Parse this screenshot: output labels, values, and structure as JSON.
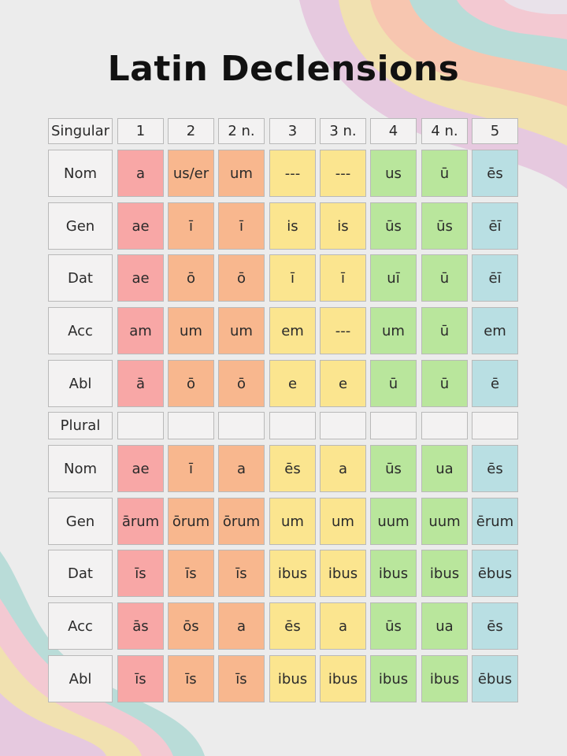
{
  "title": "Latin Declensions",
  "colors": {
    "declension_1": "#f8a7a6",
    "declension_2": "#f8b78e",
    "declension_3": "#fbe58f",
    "declension_4": "#b9e69c",
    "declension_5": "#b9dfe3",
    "label_cell": "#f3f2f2"
  },
  "columns": [
    "1",
    "2",
    "2 n.",
    "3",
    "3 n.",
    "4",
    "4 n.",
    "5"
  ],
  "singular": {
    "label": "Singular",
    "rows": [
      {
        "case": "Nom",
        "endings": [
          "a",
          "us/er",
          "um",
          "---",
          "---",
          "us",
          "ū",
          "ēs"
        ]
      },
      {
        "case": "Gen",
        "endings": [
          "ae",
          "ī",
          "ī",
          "is",
          "is",
          "ūs",
          "ūs",
          "ēī"
        ]
      },
      {
        "case": "Dat",
        "endings": [
          "ae",
          "ō",
          "ō",
          "ī",
          "ī",
          "uī",
          "ū",
          "ēī"
        ]
      },
      {
        "case": "Acc",
        "endings": [
          "am",
          "um",
          "um",
          "em",
          "---",
          "um",
          "ū",
          "em"
        ]
      },
      {
        "case": "Abl",
        "endings": [
          "ā",
          "ō",
          "ō",
          "e",
          "e",
          "ū",
          "ū",
          "ē"
        ]
      }
    ]
  },
  "plural": {
    "label": "Plural",
    "rows": [
      {
        "case": "Nom",
        "endings": [
          "ae",
          "ī",
          "a",
          "ēs",
          "a",
          "ūs",
          "ua",
          "ēs"
        ]
      },
      {
        "case": "Gen",
        "endings": [
          "ārum",
          "ōrum",
          "ōrum",
          "um",
          "um",
          "uum",
          "uum",
          "ērum"
        ]
      },
      {
        "case": "Dat",
        "endings": [
          "īs",
          "īs",
          "īs",
          "ibus",
          "ibus",
          "ibus",
          "ibus",
          "ēbus"
        ]
      },
      {
        "case": "Acc",
        "endings": [
          "ās",
          "ōs",
          "a",
          "ēs",
          "a",
          "ūs",
          "ua",
          "ēs"
        ]
      },
      {
        "case": "Abl",
        "endings": [
          "īs",
          "īs",
          "īs",
          "ibus",
          "ibus",
          "ibus",
          "ibus",
          "ēbus"
        ]
      }
    ]
  }
}
